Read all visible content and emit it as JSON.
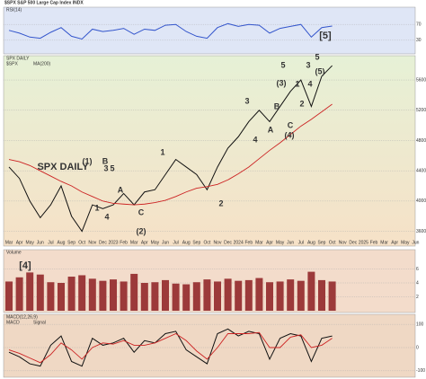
{
  "header": "$SPX S&P 500 Large Cap Index INDX",
  "chart_data": [
    {
      "type": "line",
      "title": "RSI(14)",
      "ylim": [
        0,
        100
      ],
      "yticks": [
        30,
        70
      ],
      "grid": true,
      "series": [
        {
          "name": "RSI(14)",
          "color": "#3355cc",
          "values": [
            55,
            48,
            38,
            35,
            50,
            62,
            40,
            33,
            58,
            52,
            55,
            60,
            45,
            58,
            55,
            68,
            70,
            52,
            40,
            35,
            62,
            72,
            65,
            70,
            68,
            48,
            60,
            65,
            70,
            38,
            62,
            66,
            null,
            null,
            null,
            null,
            null,
            null,
            null,
            null
          ]
        }
      ]
    },
    {
      "type": "line",
      "title": "SPX DAILY",
      "categories": [
        "Mar",
        "Apr",
        "May",
        "Jun",
        "Jul",
        "Aug",
        "Sep",
        "Oct",
        "Nov",
        "Dec",
        "2023",
        "Feb",
        "Mar",
        "Apr",
        "May",
        "Jun",
        "Jul",
        "Aug",
        "Sep",
        "Oct",
        "Nov",
        "Dec",
        "2024",
        "Feb",
        "Mar",
        "Apr",
        "May",
        "Jun",
        "Jul",
        "Aug",
        "Sep",
        "Oct",
        "Nov",
        "Dec",
        "2025",
        "Feb",
        "Mar",
        "Apr",
        "May",
        "Jun"
      ],
      "ylim": [
        3500,
        5850
      ],
      "yticks": [
        3600,
        4000,
        4400,
        4800,
        5200,
        5600
      ],
      "grid": true,
      "series": [
        {
          "name": "$SPX",
          "color": "#111111",
          "values": [
            4450,
            4300,
            4000,
            3780,
            3950,
            4200,
            3800,
            3600,
            3950,
            3900,
            3950,
            4100,
            3950,
            4120,
            4150,
            4350,
            4550,
            4450,
            4350,
            4150,
            4450,
            4700,
            4850,
            5050,
            5200,
            5050,
            5250,
            5450,
            5600,
            5250,
            5650,
            5790,
            null,
            null,
            null,
            null,
            null,
            null,
            null,
            null
          ]
        },
        {
          "name": "MA(200)",
          "color": "#cc2222",
          "values": [
            4550,
            4520,
            4470,
            4400,
            4330,
            4260,
            4200,
            4120,
            4060,
            4000,
            3970,
            3960,
            3950,
            3960,
            3980,
            4010,
            4060,
            4120,
            4170,
            4190,
            4220,
            4280,
            4360,
            4450,
            4560,
            4670,
            4770,
            4880,
            4990,
            5080,
            5180,
            5280,
            null,
            null,
            null,
            null,
            null,
            null,
            null,
            null
          ]
        }
      ],
      "annotations": [
        {
          "text": "SPX DAILY",
          "color": "#2233bb"
        },
        {
          "text": "(1)",
          "color": "#cc2222"
        },
        {
          "text": "1",
          "color": "#2233bb"
        },
        {
          "text": "3",
          "color": "#2233bb"
        },
        {
          "text": "5",
          "color": "#2233bb"
        },
        {
          "text": "4",
          "color": "#2233bb"
        },
        {
          "text": "B",
          "color": "#2233bb"
        },
        {
          "text": "A",
          "color": "#2233bb"
        },
        {
          "text": "C",
          "color": "#2233bb"
        },
        {
          "text": "(2)",
          "color": "#cc2222"
        },
        {
          "text": "1",
          "color": "#2233bb"
        },
        {
          "text": "2",
          "color": "#2233bb"
        },
        {
          "text": "3",
          "color": "#2233bb"
        },
        {
          "text": "4",
          "color": "#2233bb"
        },
        {
          "text": "(3)",
          "color": "#cc2222"
        },
        {
          "text": "5",
          "color": "#2233bb"
        },
        {
          "text": "B",
          "color": "#2233bb"
        },
        {
          "text": "A",
          "color": "#2233bb"
        },
        {
          "text": "C",
          "color": "#2233bb"
        },
        {
          "text": "(4)",
          "color": "#cc2222"
        },
        {
          "text": "1",
          "color": "#2233bb"
        },
        {
          "text": "2",
          "color": "#2233bb"
        },
        {
          "text": "3",
          "color": "#2233bb"
        },
        {
          "text": "4",
          "color": "#2233bb"
        },
        {
          "text": "5",
          "color": "#2233bb"
        },
        {
          "text": "(5)",
          "color": "#cc2222"
        },
        {
          "text": "[5]",
          "color": "#111111"
        }
      ]
    },
    {
      "type": "bar",
      "title": "Volume",
      "ylim": [
        0,
        8
      ],
      "yticks": [
        2,
        4,
        6
      ],
      "grid": true,
      "color": "#9c3a3a",
      "series": [
        {
          "name": "Volume",
          "values": [
            4.2,
            4.8,
            5.5,
            5.2,
            4.1,
            4.0,
            4.9,
            5.1,
            4.6,
            4.3,
            4.5,
            4.2,
            5.3,
            4.0,
            4.1,
            4.4,
            3.9,
            3.8,
            4.1,
            4.5,
            4.2,
            4.6,
            4.3,
            4.4,
            4.7,
            4.1,
            4.2,
            4.5,
            4.3,
            5.6,
            4.4,
            4.2,
            null,
            null,
            null,
            null,
            null,
            null,
            null,
            null
          ]
        }
      ],
      "annotations": [
        {
          "text": "[4]",
          "color": "#111111"
        }
      ]
    },
    {
      "type": "line",
      "title": "MACD(12,26,9)",
      "ylim": [
        -120,
        120
      ],
      "yticks": [
        -100,
        0,
        100
      ],
      "grid": true,
      "series": [
        {
          "name": "MACD",
          "color": "#111111",
          "values": [
            -20,
            -40,
            -70,
            -80,
            10,
            50,
            -60,
            -80,
            40,
            10,
            20,
            40,
            -20,
            30,
            20,
            60,
            70,
            -10,
            -40,
            -70,
            60,
            80,
            50,
            70,
            60,
            -50,
            40,
            60,
            50,
            -60,
            40,
            50,
            null,
            null,
            null,
            null,
            null,
            null,
            null,
            null
          ]
        },
        {
          "name": "Signal",
          "color": "#cc2222",
          "values": [
            -10,
            -25,
            -45,
            -65,
            -30,
            20,
            -10,
            -50,
            0,
            20,
            15,
            30,
            10,
            10,
            20,
            40,
            60,
            30,
            -15,
            -50,
            0,
            60,
            60,
            60,
            65,
            0,
            0,
            45,
            55,
            0,
            10,
            40,
            null,
            null,
            null,
            null,
            null,
            null,
            null,
            null
          ]
        }
      ]
    }
  ]
}
